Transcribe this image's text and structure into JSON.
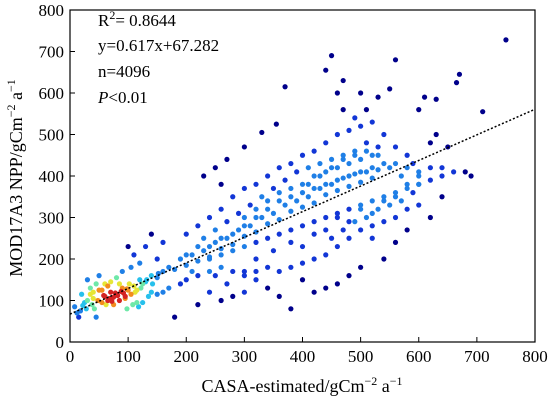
{
  "chart_data": {
    "type": "scatter",
    "xlabel": "CASA-estimated/gCm",
    "xlabel_sup": "−2",
    "xlabel_tail": " a",
    "xlabel_tail_sup": "−1",
    "ylabel": "MOD17A3 NPP/gCm",
    "ylabel_sup": "−2",
    "ylabel_tail": " a",
    "ylabel_tail_sup": "−1",
    "xlim": [
      0,
      800
    ],
    "ylim": [
      0,
      800
    ],
    "xticks": [
      "0",
      "100",
      "200",
      "300",
      "400",
      "500",
      "600",
      "700",
      "800"
    ],
    "yticks": [
      "0",
      "100",
      "200",
      "300",
      "400",
      "500",
      "600",
      "700",
      "800"
    ],
    "grid": false,
    "annotations": {
      "r2_prefix": "R",
      "r2_sup": "2",
      "r2_suffix": "= 0.8644",
      "equation": "y=0.617x+67.282",
      "n": "n=4096",
      "p_letter": "P",
      "p_rest": "<0.01"
    },
    "fit_line": {
      "slope": 0.617,
      "intercept": 67.282,
      "x_range": [
        0,
        800
      ],
      "color": "#000000",
      "style": "dotted"
    },
    "density_colormap": [
      "#00008b",
      "#1236d6",
      "#1f7fe6",
      "#26c0ec",
      "#6ee8a8",
      "#e6e636",
      "#f28c1e",
      "#d42323"
    ],
    "points": [
      [
        12,
        70
      ],
      [
        25,
        95
      ],
      [
        40,
        105
      ],
      [
        60,
        110
      ],
      [
        70,
        120
      ],
      [
        80,
        115
      ],
      [
        90,
        130
      ],
      [
        100,
        125
      ],
      [
        55,
        95
      ],
      [
        65,
        100
      ],
      [
        75,
        108
      ],
      [
        85,
        140
      ],
      [
        95,
        105
      ],
      [
        110,
        135
      ],
      [
        120,
        150
      ],
      [
        130,
        145
      ],
      [
        140,
        160
      ],
      [
        150,
        155
      ],
      [
        160,
        170
      ],
      [
        170,
        180
      ],
      [
        35,
        130
      ],
      [
        45,
        60
      ],
      [
        30,
        150
      ],
      [
        20,
        115
      ],
      [
        8,
        85
      ],
      [
        15,
        60
      ],
      [
        50,
        160
      ],
      [
        42,
        80
      ],
      [
        105,
        180
      ],
      [
        115,
        95
      ],
      [
        180,
        175
      ],
      [
        190,
        200
      ],
      [
        200,
        185
      ],
      [
        210,
        210
      ],
      [
        220,
        195
      ],
      [
        230,
        220
      ],
      [
        240,
        205
      ],
      [
        250,
        240
      ],
      [
        260,
        225
      ],
      [
        270,
        250
      ],
      [
        280,
        235
      ],
      [
        290,
        270
      ],
      [
        300,
        255
      ],
      [
        310,
        280
      ],
      [
        320,
        265
      ],
      [
        330,
        300
      ],
      [
        340,
        285
      ],
      [
        350,
        310
      ],
      [
        360,
        295
      ],
      [
        370,
        330
      ],
      [
        380,
        315
      ],
      [
        390,
        340
      ],
      [
        400,
        325
      ],
      [
        410,
        350
      ],
      [
        420,
        335
      ],
      [
        430,
        370
      ],
      [
        440,
        355
      ],
      [
        450,
        380
      ],
      [
        460,
        365
      ],
      [
        470,
        395
      ],
      [
        480,
        375
      ],
      [
        490,
        405
      ],
      [
        500,
        385
      ],
      [
        510,
        410
      ],
      [
        520,
        395
      ],
      [
        530,
        415
      ],
      [
        250,
        160
      ],
      [
        270,
        140
      ],
      [
        300,
        170
      ],
      [
        320,
        200
      ],
      [
        350,
        220
      ],
      [
        380,
        240
      ],
      [
        400,
        230
      ],
      [
        420,
        260
      ],
      [
        440,
        270
      ],
      [
        460,
        300
      ],
      [
        480,
        290
      ],
      [
        500,
        320
      ],
      [
        520,
        310
      ],
      [
        540,
        340
      ],
      [
        560,
        350
      ],
      [
        580,
        380
      ],
      [
        600,
        400
      ],
      [
        620,
        420
      ],
      [
        200,
        260
      ],
      [
        220,
        280
      ],
      [
        240,
        300
      ],
      [
        260,
        320
      ],
      [
        280,
        350
      ],
      [
        300,
        370
      ],
      [
        320,
        380
      ],
      [
        340,
        400
      ],
      [
        360,
        420
      ],
      [
        380,
        430
      ],
      [
        400,
        450
      ],
      [
        420,
        460
      ],
      [
        440,
        480
      ],
      [
        460,
        500
      ],
      [
        480,
        510
      ],
      [
        500,
        520
      ],
      [
        520,
        530
      ],
      [
        540,
        500
      ],
      [
        560,
        470
      ],
      [
        580,
        450
      ],
      [
        620,
        480
      ],
      [
        630,
        500
      ],
      [
        640,
        420
      ],
      [
        650,
        470
      ],
      [
        600,
        560
      ],
      [
        610,
        590
      ],
      [
        630,
        585
      ],
      [
        550,
        610
      ],
      [
        500,
        600
      ],
      [
        470,
        630
      ],
      [
        450,
        690
      ],
      [
        440,
        655
      ],
      [
        370,
        615
      ],
      [
        355,
        525
      ],
      [
        330,
        505
      ],
      [
        300,
        470
      ],
      [
        270,
        440
      ],
      [
        250,
        420
      ],
      [
        230,
        400
      ],
      [
        260,
        380
      ],
      [
        460,
        600
      ],
      [
        470,
        560
      ],
      [
        490,
        540
      ],
      [
        510,
        560
      ],
      [
        530,
        590
      ],
      [
        560,
        680
      ],
      [
        670,
        645
      ],
      [
        665,
        625
      ],
      [
        710,
        555
      ],
      [
        750,
        728
      ],
      [
        690,
        400
      ],
      [
        680,
        410
      ],
      [
        600,
        380
      ],
      [
        640,
        350
      ],
      [
        620,
        300
      ],
      [
        580,
        270
      ],
      [
        560,
        240
      ],
      [
        540,
        200
      ],
      [
        520,
        250
      ],
      [
        500,
        180
      ],
      [
        480,
        160
      ],
      [
        460,
        140
      ],
      [
        440,
        130
      ],
      [
        420,
        120
      ],
      [
        400,
        150
      ],
      [
        380,
        80
      ],
      [
        360,
        110
      ],
      [
        340,
        130
      ],
      [
        320,
        150
      ],
      [
        300,
        120
      ],
      [
        280,
        110
      ],
      [
        260,
        100
      ],
      [
        240,
        120
      ],
      [
        220,
        90
      ],
      [
        200,
        150
      ],
      [
        180,
        60
      ],
      [
        160,
        240
      ],
      [
        150,
        200
      ],
      [
        140,
        260
      ],
      [
        130,
        230
      ],
      [
        120,
        190
      ],
      [
        110,
        210
      ],
      [
        100,
        230
      ],
      [
        90,
        170
      ],
      [
        80,
        155
      ],
      [
        70,
        145
      ],
      [
        60,
        140
      ],
      [
        50,
        125
      ],
      [
        40,
        120
      ],
      [
        30,
        100
      ],
      [
        22,
        88
      ],
      [
        18,
        75
      ],
      [
        28,
        80
      ],
      [
        38,
        90
      ],
      [
        48,
        100
      ],
      [
        58,
        112
      ],
      [
        68,
        105
      ],
      [
        78,
        118
      ],
      [
        88,
        122
      ],
      [
        98,
        128
      ],
      [
        62,
        90
      ],
      [
        72,
        98
      ],
      [
        82,
        112
      ],
      [
        92,
        118
      ],
      [
        102,
        140
      ],
      [
        112,
        120
      ],
      [
        122,
        130
      ],
      [
        132,
        150
      ],
      [
        142,
        140
      ],
      [
        152,
        165
      ],
      [
        45,
        140
      ],
      [
        35,
        115
      ],
      [
        55,
        125
      ],
      [
        65,
        135
      ],
      [
        75,
        90
      ],
      [
        85,
        100
      ],
      [
        95,
        110
      ],
      [
        105,
        115
      ],
      [
        115,
        125
      ],
      [
        125,
        140
      ],
      [
        210,
        170
      ],
      [
        230,
        250
      ],
      [
        250,
        270
      ],
      [
        270,
        290
      ],
      [
        290,
        310
      ],
      [
        310,
        330
      ],
      [
        330,
        350
      ],
      [
        350,
        370
      ],
      [
        370,
        390
      ],
      [
        390,
        410
      ],
      [
        410,
        380
      ],
      [
        430,
        400
      ],
      [
        450,
        420
      ],
      [
        470,
        440
      ],
      [
        490,
        460
      ],
      [
        510,
        480
      ],
      [
        530,
        450
      ],
      [
        550,
        420
      ],
      [
        570,
        400
      ],
      [
        590,
        430
      ],
      [
        600,
        330
      ],
      [
        580,
        320
      ],
      [
        560,
        300
      ],
      [
        540,
        290
      ],
      [
        520,
        280
      ],
      [
        500,
        270
      ],
      [
        480,
        250
      ],
      [
        460,
        230
      ],
      [
        440,
        210
      ],
      [
        420,
        200
      ],
      [
        400,
        190
      ],
      [
        380,
        180
      ],
      [
        360,
        170
      ],
      [
        340,
        180
      ],
      [
        320,
        170
      ],
      [
        300,
        160
      ],
      [
        280,
        170
      ],
      [
        260,
        180
      ],
      [
        240,
        170
      ],
      [
        220,
        160
      ],
      [
        190,
        140
      ],
      [
        170,
        130
      ],
      [
        160,
        120
      ],
      [
        150,
        115
      ],
      [
        140,
        120
      ],
      [
        135,
        110
      ],
      [
        125,
        95
      ],
      [
        118,
        85
      ],
      [
        108,
        90
      ],
      [
        98,
        80
      ],
      [
        300,
        300
      ],
      [
        320,
        320
      ],
      [
        340,
        340
      ],
      [
        360,
        360
      ],
      [
        380,
        370
      ],
      [
        400,
        380
      ],
      [
        420,
        400
      ],
      [
        440,
        410
      ],
      [
        460,
        420
      ],
      [
        480,
        430
      ],
      [
        500,
        440
      ],
      [
        520,
        450
      ],
      [
        540,
        430
      ],
      [
        560,
        430
      ],
      [
        580,
        420
      ],
      [
        600,
        410
      ],
      [
        410,
        420
      ],
      [
        430,
        430
      ],
      [
        450,
        440
      ],
      [
        470,
        450
      ],
      [
        490,
        450
      ],
      [
        510,
        460
      ],
      [
        530,
        470
      ],
      [
        520,
        420
      ],
      [
        500,
        410
      ],
      [
        480,
        400
      ],
      [
        460,
        390
      ],
      [
        440,
        380
      ],
      [
        420,
        370
      ],
      [
        400,
        360
      ],
      [
        380,
        350
      ],
      [
        360,
        340
      ],
      [
        340,
        320
      ],
      [
        320,
        300
      ],
      [
        300,
        280
      ],
      [
        280,
        260
      ],
      [
        260,
        250
      ],
      [
        240,
        230
      ],
      [
        220,
        230
      ],
      [
        200,
        210
      ],
      [
        240,
        200
      ],
      [
        260,
        210
      ],
      [
        280,
        220
      ],
      [
        300,
        230
      ],
      [
        320,
        240
      ],
      [
        340,
        250
      ],
      [
        360,
        260
      ],
      [
        380,
        270
      ],
      [
        400,
        280
      ],
      [
        420,
        290
      ],
      [
        440,
        300
      ],
      [
        460,
        310
      ],
      [
        480,
        320
      ],
      [
        500,
        330
      ],
      [
        520,
        340
      ],
      [
        540,
        350
      ],
      [
        560,
        360
      ],
      [
        580,
        370
      ],
      [
        600,
        380
      ],
      [
        620,
        390
      ],
      [
        640,
        400
      ],
      [
        660,
        410
      ],
      [
        450,
        250
      ],
      [
        470,
        270
      ],
      [
        490,
        290
      ],
      [
        510,
        300
      ],
      [
        530,
        320
      ],
      [
        550,
        330
      ],
      [
        570,
        340
      ],
      [
        590,
        360
      ]
    ]
  }
}
